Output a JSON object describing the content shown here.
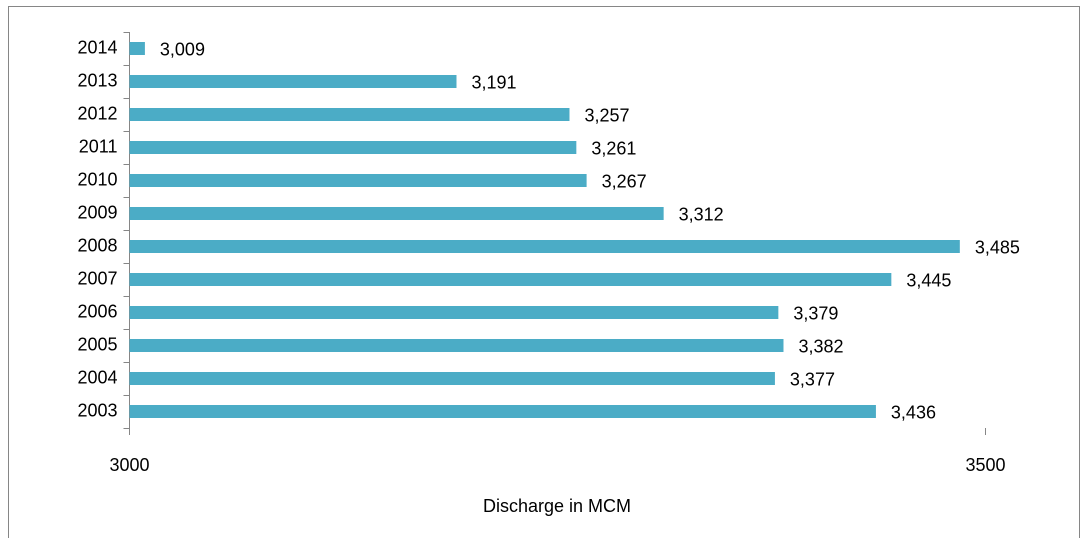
{
  "chart_data": {
    "type": "bar",
    "orientation": "horizontal",
    "x_label": "Discharge in MCM",
    "categories": [
      "2003",
      "2004",
      "2005",
      "2006",
      "2007",
      "2008",
      "2009",
      "2010",
      "2011",
      "2012",
      "2013",
      "2014"
    ],
    "values": [
      3436,
      3377,
      3382,
      3379,
      3445,
      3485,
      3312,
      3267,
      3261,
      3257,
      3191,
      3009
    ],
    "value_labels": [
      "3,436",
      "3,377",
      "3,382",
      "3,379",
      "3,445",
      "3,485",
      "3,312",
      "3,267",
      "3,261",
      "3,257",
      "3,191",
      "3,009"
    ],
    "color": "#4bacc6",
    "xlim": [
      3000,
      3500
    ],
    "xticks": [
      3000,
      3500
    ]
  }
}
